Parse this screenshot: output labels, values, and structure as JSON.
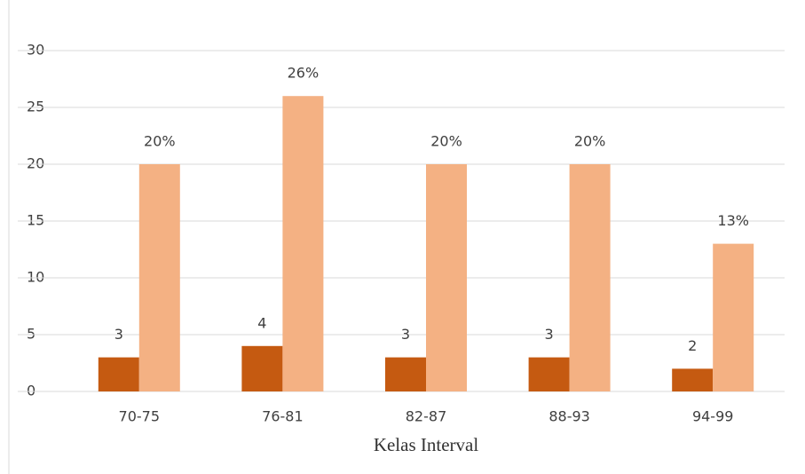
{
  "chart_data": {
    "type": "bar",
    "x_label": "Kelas Interval",
    "categories": [
      "70-75",
      "76-81",
      "82-87",
      "88-93",
      "94-99"
    ],
    "series": [
      {
        "color": "#c55a11",
        "values": [
          3,
          4,
          3,
          3,
          2
        ]
      },
      {
        "color": "#f4b183",
        "values": [
          20,
          26,
          20,
          20,
          13
        ],
        "value_labels": [
          "20%",
          "26%",
          "20%",
          "20%",
          "13%"
        ]
      }
    ],
    "ylim": [
      0,
      30
    ],
    "yticks": [
      0,
      5,
      10,
      15,
      20,
      25,
      30
    ],
    "grid": true
  }
}
